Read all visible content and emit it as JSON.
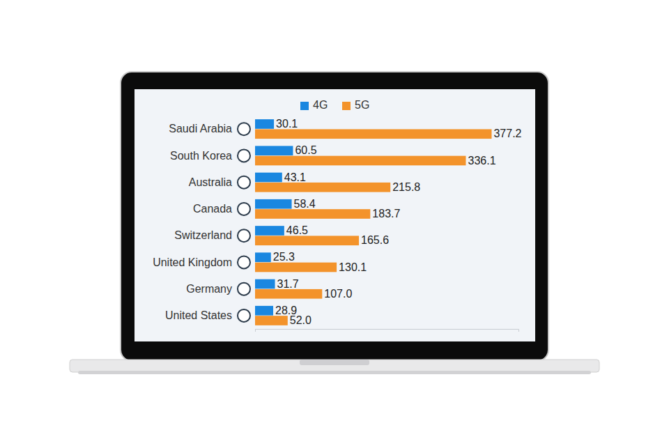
{
  "chart_data": {
    "type": "bar",
    "orientation": "horizontal",
    "categories": [
      "Saudi Arabia",
      "South Korea",
      "Australia",
      "Canada",
      "Switzerland",
      "United Kingdom",
      "Germany",
      "United States"
    ],
    "series": [
      {
        "name": "4G",
        "color": "#1a87e0",
        "values": [
          30.1,
          60.5,
          43.1,
          58.4,
          46.5,
          25.3,
          31.7,
          28.9
        ],
        "value_labels": [
          "30.1",
          "60.5",
          "43.1",
          "58.4",
          "46.5",
          "25.3",
          "31.7",
          "28.9"
        ]
      },
      {
        "name": "5G",
        "color": "#f3932b",
        "values": [
          377.2,
          336.1,
          215.8,
          183.7,
          165.6,
          130.1,
          107.0,
          52.0
        ],
        "value_labels": [
          "377.2",
          "336.1",
          "215.8",
          "183.7",
          "165.6",
          "130.1",
          "107.0",
          "52.0"
        ]
      }
    ],
    "xlim": [
      0,
      420
    ],
    "xticks": [
      0
    ],
    "data_labels": true,
    "tick_labels": "y",
    "legend": "top",
    "grid": false
  }
}
